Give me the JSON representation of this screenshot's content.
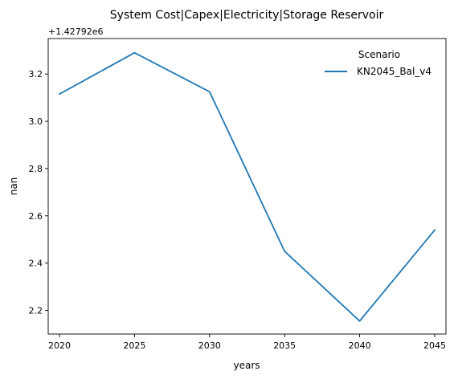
{
  "chart_data": {
    "type": "line",
    "title": "System Cost|Capex|Electricity|Storage Reservoir",
    "xlabel": "years",
    "ylabel": "nan",
    "y_offset_label": "+1.42792e6",
    "x": [
      2020,
      2025,
      2030,
      2035,
      2040,
      2045
    ],
    "xticks": [
      2020,
      2025,
      2030,
      2035,
      2040,
      2045
    ],
    "xlim": [
      2019.25,
      2045.75
    ],
    "yticks": [
      2.2,
      2.4,
      2.6,
      2.8,
      3.0,
      3.2
    ],
    "ytick_labels": [
      "2.2",
      "2.4",
      "2.6",
      "2.8",
      "3.0",
      "3.2"
    ],
    "ylim": [
      2.1,
      3.35
    ],
    "grid": false,
    "legend": {
      "title": "Scenario",
      "position": "top-right"
    },
    "series": [
      {
        "name": "KN2045_Bal_v4",
        "color": "#1f77b4",
        "values": [
          3.115,
          3.29,
          3.125,
          2.45,
          2.155,
          2.54
        ]
      }
    ]
  }
}
